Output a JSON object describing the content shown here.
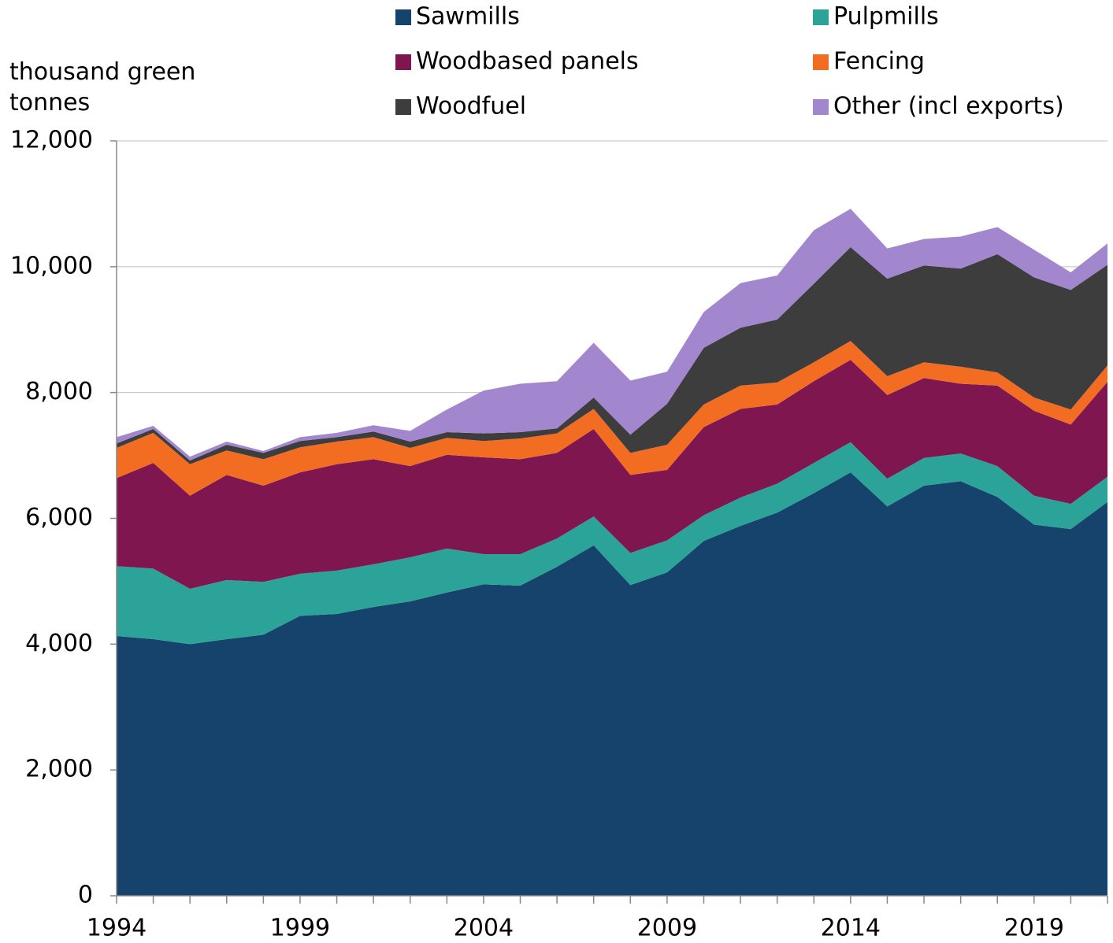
{
  "chart_data": {
    "type": "stacked_area",
    "y_label": "thousand green tonnes",
    "x": [
      1994,
      1995,
      1996,
      1997,
      1998,
      1999,
      2000,
      2001,
      2002,
      2003,
      2004,
      2005,
      2006,
      2007,
      2008,
      2009,
      2010,
      2011,
      2012,
      2013,
      2014,
      2015,
      2016,
      2017,
      2018,
      2019,
      2020,
      2021
    ],
    "xlim": [
      1994,
      2021
    ],
    "xticks": [
      1994,
      1999,
      2004,
      2009,
      2014,
      2019
    ],
    "ylim": [
      0,
      12000
    ],
    "yticks": [
      0,
      {
        "value": 2000,
        "label": "2,000"
      },
      {
        "value": 4000,
        "label": "4,000"
      },
      {
        "value": 6000,
        "label": "6,000"
      },
      {
        "value": 8000,
        "label": "8,000"
      },
      {
        "value": 10000,
        "label": "10,000"
      },
      {
        "value": 12000,
        "label": "12,000"
      }
    ],
    "grid": true,
    "legend": "top",
    "series": [
      {
        "name": "Sawmills",
        "color": "#15436b",
        "values": [
          4130,
          4080,
          4000,
          4080,
          4150,
          4450,
          4480,
          4590,
          4680,
          4820,
          4950,
          4930,
          5230,
          5570,
          4940,
          5140,
          5640,
          5880,
          6090,
          6400,
          6730,
          6190,
          6520,
          6590,
          6340,
          5900,
          5830,
          6260
        ]
      },
      {
        "name": "Pulpmills",
        "color": "#2ba398",
        "values": [
          1110,
          1120,
          880,
          940,
          840,
          670,
          690,
          680,
          700,
          700,
          480,
          500,
          450,
          460,
          510,
          510,
          410,
          450,
          460,
          480,
          480,
          440,
          440,
          440,
          490,
          460,
          400,
          400
        ]
      },
      {
        "name": "Woodbased panels",
        "color": "#7f1650",
        "values": [
          1400,
          1680,
          1480,
          1670,
          1530,
          1610,
          1690,
          1670,
          1450,
          1490,
          1540,
          1510,
          1360,
          1390,
          1240,
          1120,
          1400,
          1410,
          1260,
          1300,
          1310,
          1330,
          1270,
          1110,
          1280,
          1350,
          1260,
          1510
        ]
      },
      {
        "name": "Fencing",
        "color": "#f26d21",
        "values": [
          480,
          480,
          500,
          390,
          420,
          400,
          360,
          350,
          290,
          270,
          260,
          330,
          310,
          320,
          350,
          400,
          360,
          370,
          350,
          300,
          300,
          300,
          250,
          270,
          210,
          210,
          240,
          260
        ]
      },
      {
        "name": "Woodfuel",
        "color": "#3d3d3d",
        "values": [
          70,
          60,
          60,
          90,
          100,
          100,
          70,
          90,
          100,
          90,
          120,
          100,
          80,
          180,
          290,
          650,
          900,
          920,
          1000,
          1250,
          1490,
          1550,
          1540,
          1560,
          1880,
          1910,
          1900,
          1600
        ]
      },
      {
        "name": "Other (incl exports)",
        "color": "#a287cf",
        "values": [
          100,
          50,
          60,
          50,
          30,
          60,
          70,
          100,
          170,
          360,
          680,
          770,
          750,
          870,
          860,
          510,
          570,
          710,
          700,
          850,
          610,
          480,
          420,
          510,
          430,
          440,
          280,
          340
        ]
      }
    ]
  }
}
